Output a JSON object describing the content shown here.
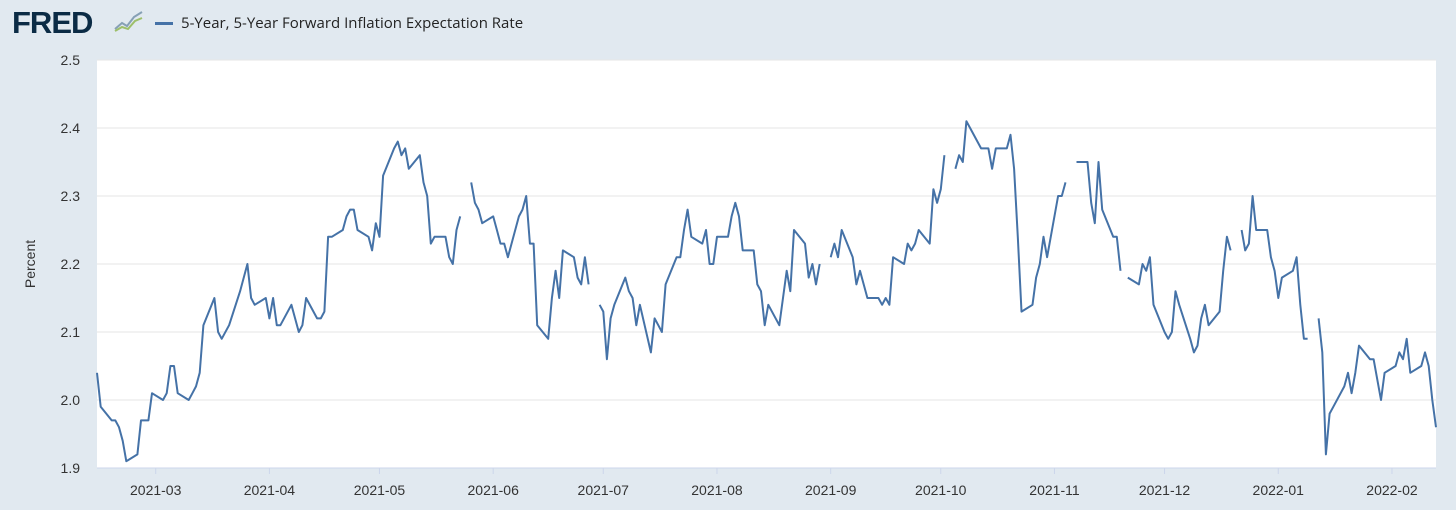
{
  "brand": {
    "name": "FRED",
    "accent": "#4572a7"
  },
  "chart_data": {
    "type": "line",
    "title": "",
    "legend": [
      "5-Year, 5-Year Forward Inflation Expectation Rate"
    ],
    "xlabel": "",
    "ylabel": "Percent",
    "ylim": [
      1.9,
      2.5
    ],
    "yticks": [
      "1.9",
      "2.0",
      "2.1",
      "2.2",
      "2.3",
      "2.4",
      "2.5"
    ],
    "xticks": [
      "2021-03",
      "2021-04",
      "2021-05",
      "2021-06",
      "2021-07",
      "2021-08",
      "2021-09",
      "2021-10",
      "2021-11",
      "2021-12",
      "2022-01",
      "2022-02"
    ],
    "grid": true,
    "series": [
      {
        "name": "5-Year, 5-Year Forward Inflation Expectation Rate",
        "color": "#4572a7",
        "segments": [
          [
            [
              0,
              2.04
            ],
            [
              1,
              1.99
            ],
            [
              4,
              1.97
            ],
            [
              5,
              1.97
            ],
            [
              6,
              1.96
            ],
            [
              7,
              1.94
            ],
            [
              8,
              1.91
            ],
            [
              11,
              1.92
            ],
            [
              12,
              1.97
            ],
            [
              14,
              1.97
            ],
            [
              15,
              2.01
            ],
            [
              18,
              2.0
            ],
            [
              19,
              2.01
            ],
            [
              20,
              2.05
            ],
            [
              21,
              2.05
            ],
            [
              22,
              2.01
            ],
            [
              25,
              2.0
            ],
            [
              26,
              2.01
            ],
            [
              27,
              2.02
            ],
            [
              28,
              2.04
            ],
            [
              29,
              2.11
            ],
            [
              32,
              2.15
            ],
            [
              33,
              2.1
            ],
            [
              34,
              2.09
            ],
            [
              36,
              2.11
            ],
            [
              39,
              2.16
            ],
            [
              41,
              2.2
            ],
            [
              42,
              2.15
            ],
            [
              43,
              2.14
            ],
            [
              46,
              2.15
            ],
            [
              47,
              2.12
            ],
            [
              48,
              2.15
            ],
            [
              49,
              2.11
            ],
            [
              50,
              2.11
            ],
            [
              53,
              2.14
            ],
            [
              54,
              2.12
            ],
            [
              55,
              2.1
            ],
            [
              56,
              2.11
            ],
            [
              57,
              2.15
            ],
            [
              60,
              2.12
            ],
            [
              61,
              2.12
            ],
            [
              62,
              2.13
            ],
            [
              63,
              2.24
            ],
            [
              64,
              2.24
            ],
            [
              67,
              2.25
            ],
            [
              68,
              2.27
            ],
            [
              69,
              2.28
            ],
            [
              70,
              2.28
            ],
            [
              71,
              2.25
            ],
            [
              74,
              2.24
            ],
            [
              75,
              2.22
            ],
            [
              76,
              2.26
            ],
            [
              77,
              2.24
            ],
            [
              78,
              2.33
            ],
            [
              81,
              2.37
            ],
            [
              82,
              2.38
            ],
            [
              83,
              2.36
            ],
            [
              84,
              2.37
            ],
            [
              85,
              2.34
            ],
            [
              88,
              2.36
            ],
            [
              89,
              2.32
            ],
            [
              90,
              2.3
            ],
            [
              91,
              2.23
            ],
            [
              92,
              2.24
            ],
            [
              95,
              2.24
            ],
            [
              96,
              2.21
            ],
            [
              97,
              2.2
            ],
            [
              98,
              2.25
            ],
            [
              99,
              2.27
            ]
          ],
          [
            [
              102,
              2.32
            ],
            [
              103,
              2.29
            ],
            [
              104,
              2.28
            ],
            [
              105,
              2.26
            ],
            [
              108,
              2.27
            ],
            [
              109,
              2.25
            ],
            [
              110,
              2.23
            ],
            [
              111,
              2.23
            ],
            [
              112,
              2.21
            ],
            [
              115,
              2.27
            ],
            [
              116,
              2.28
            ],
            [
              117,
              2.3
            ],
            [
              118,
              2.23
            ],
            [
              119,
              2.23
            ],
            [
              120,
              2.11
            ],
            [
              123,
              2.09
            ],
            [
              124,
              2.15
            ],
            [
              125,
              2.19
            ],
            [
              126,
              2.15
            ],
            [
              127,
              2.22
            ],
            [
              130,
              2.21
            ],
            [
              131,
              2.18
            ],
            [
              132,
              2.17
            ],
            [
              133,
              2.21
            ],
            [
              134,
              2.17
            ]
          ],
          [
            [
              137,
              2.14
            ],
            [
              138,
              2.13
            ],
            [
              139,
              2.06
            ],
            [
              140,
              2.12
            ],
            [
              141,
              2.14
            ],
            [
              144,
              2.18
            ],
            [
              145,
              2.16
            ],
            [
              146,
              2.15
            ],
            [
              147,
              2.11
            ],
            [
              148,
              2.14
            ],
            [
              151,
              2.07
            ],
            [
              152,
              2.12
            ],
            [
              153,
              2.11
            ],
            [
              154,
              2.1
            ],
            [
              155,
              2.17
            ],
            [
              158,
              2.21
            ],
            [
              159,
              2.21
            ],
            [
              160,
              2.25
            ],
            [
              161,
              2.28
            ],
            [
              162,
              2.24
            ],
            [
              165,
              2.23
            ],
            [
              166,
              2.25
            ],
            [
              167,
              2.2
            ],
            [
              168,
              2.2
            ],
            [
              169,
              2.24
            ],
            [
              172,
              2.24
            ],
            [
              173,
              2.27
            ],
            [
              174,
              2.29
            ],
            [
              175,
              2.27
            ],
            [
              176,
              2.22
            ],
            [
              179,
              2.22
            ],
            [
              180,
              2.17
            ],
            [
              181,
              2.16
            ],
            [
              182,
              2.11
            ],
            [
              183,
              2.14
            ],
            [
              186,
              2.11
            ],
            [
              187,
              2.15
            ],
            [
              188,
              2.19
            ],
            [
              189,
              2.16
            ],
            [
              190,
              2.25
            ],
            [
              193,
              2.23
            ],
            [
              194,
              2.18
            ],
            [
              195,
              2.2
            ],
            [
              196,
              2.17
            ],
            [
              197,
              2.2
            ]
          ],
          [
            [
              200,
              2.21
            ],
            [
              201,
              2.23
            ],
            [
              202,
              2.21
            ],
            [
              203,
              2.25
            ],
            [
              206,
              2.21
            ],
            [
              207,
              2.17
            ],
            [
              208,
              2.19
            ],
            [
              209,
              2.17
            ],
            [
              210,
              2.15
            ],
            [
              213,
              2.15
            ],
            [
              214,
              2.14
            ],
            [
              215,
              2.15
            ],
            [
              216,
              2.14
            ],
            [
              217,
              2.21
            ],
            [
              220,
              2.2
            ],
            [
              221,
              2.23
            ],
            [
              222,
              2.22
            ],
            [
              223,
              2.23
            ],
            [
              224,
              2.25
            ],
            [
              227,
              2.23
            ],
            [
              228,
              2.31
            ],
            [
              229,
              2.29
            ],
            [
              230,
              2.31
            ],
            [
              231,
              2.36
            ]
          ],
          [
            [
              234,
              2.34
            ],
            [
              235,
              2.36
            ],
            [
              236,
              2.35
            ],
            [
              237,
              2.41
            ],
            [
              238,
              2.4
            ],
            [
              241,
              2.37
            ],
            [
              242,
              2.37
            ],
            [
              243,
              2.37
            ],
            [
              244,
              2.34
            ],
            [
              245,
              2.37
            ],
            [
              248,
              2.37
            ],
            [
              249,
              2.39
            ],
            [
              250,
              2.34
            ],
            [
              251,
              2.24
            ],
            [
              252,
              2.13
            ],
            [
              255,
              2.14
            ],
            [
              256,
              2.18
            ],
            [
              257,
              2.2
            ],
            [
              258,
              2.24
            ],
            [
              259,
              2.21
            ],
            [
              262,
              2.3
            ],
            [
              263,
              2.3
            ],
            [
              264,
              2.32
            ]
          ],
          [
            [
              267,
              2.35
            ],
            [
              270,
              2.35
            ],
            [
              271,
              2.29
            ],
            [
              272,
              2.26
            ],
            [
              273,
              2.35
            ],
            [
              274,
              2.28
            ],
            [
              277,
              2.24
            ],
            [
              278,
              2.24
            ],
            [
              279,
              2.19
            ]
          ],
          [
            [
              281,
              2.18
            ],
            [
              284,
              2.17
            ],
            [
              285,
              2.2
            ],
            [
              286,
              2.19
            ],
            [
              287,
              2.21
            ],
            [
              288,
              2.14
            ],
            [
              291,
              2.1
            ],
            [
              292,
              2.09
            ],
            [
              293,
              2.1
            ],
            [
              294,
              2.16
            ],
            [
              295,
              2.14
            ],
            [
              298,
              2.09
            ],
            [
              299,
              2.07
            ],
            [
              300,
              2.08
            ],
            [
              301,
              2.12
            ],
            [
              302,
              2.14
            ],
            [
              303,
              2.11
            ],
            [
              306,
              2.13
            ],
            [
              307,
              2.19
            ],
            [
              308,
              2.24
            ],
            [
              309,
              2.22
            ]
          ],
          [
            [
              312,
              2.25
            ],
            [
              313,
              2.22
            ],
            [
              314,
              2.23
            ],
            [
              315,
              2.3
            ],
            [
              316,
              2.25
            ],
            [
              319,
              2.25
            ],
            [
              320,
              2.21
            ],
            [
              321,
              2.19
            ],
            [
              322,
              2.15
            ],
            [
              323,
              2.18
            ],
            [
              326,
              2.19
            ],
            [
              327,
              2.21
            ],
            [
              328,
              2.14
            ],
            [
              329,
              2.09
            ],
            [
              330,
              2.09
            ]
          ],
          [
            [
              333,
              2.12
            ],
            [
              334,
              2.07
            ],
            [
              335,
              1.92
            ],
            [
              336,
              1.98
            ],
            [
              337,
              1.99
            ],
            [
              340,
              2.02
            ],
            [
              341,
              2.04
            ],
            [
              342,
              2.01
            ],
            [
              343,
              2.04
            ],
            [
              344,
              2.08
            ],
            [
              347,
              2.06
            ],
            [
              348,
              2.06
            ],
            [
              349,
              2.03
            ],
            [
              350,
              2.0
            ],
            [
              351,
              2.04
            ],
            [
              354,
              2.05
            ],
            [
              355,
              2.07
            ],
            [
              356,
              2.06
            ],
            [
              357,
              2.09
            ],
            [
              358,
              2.04
            ],
            [
              361,
              2.05
            ],
            [
              362,
              2.07
            ],
            [
              363,
              2.05
            ],
            [
              364,
              2.0
            ],
            [
              365,
              1.96
            ]
          ]
        ]
      }
    ]
  }
}
